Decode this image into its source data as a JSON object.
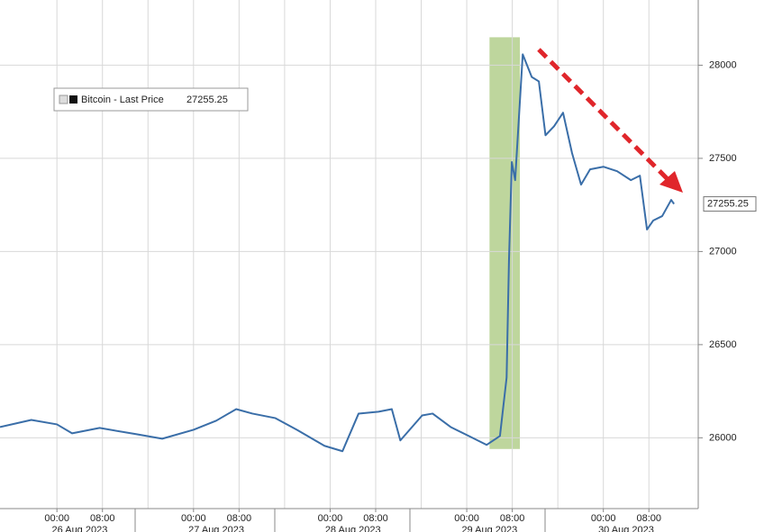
{
  "chart_data": {
    "type": "line",
    "x": [
      "2023-08-25T14:00",
      "2023-08-25T19:30",
      "2023-08-26T00:00",
      "2023-08-26T02:40",
      "2023-08-26T07:30",
      "2023-08-26T14:00",
      "2023-08-26T18:30",
      "2023-08-27T00:00",
      "2023-08-27T04:00",
      "2023-08-27T07:30",
      "2023-08-27T10:20",
      "2023-08-27T14:20",
      "2023-08-27T18:10",
      "2023-08-27T23:00",
      "2023-08-28T02:10",
      "2023-08-28T05:00",
      "2023-08-28T08:30",
      "2023-08-28T10:50",
      "2023-08-28T12:20",
      "2023-08-28T16:10",
      "2023-08-28T18:00",
      "2023-08-28T21:10",
      "2023-08-29T00:20",
      "2023-08-29T03:30",
      "2023-08-29T05:50",
      "2023-08-29T07:00",
      "2023-08-29T07:25",
      "2023-08-29T07:55",
      "2023-08-29T08:30",
      "2023-08-29T09:10",
      "2023-08-29T09:50",
      "2023-08-29T11:25",
      "2023-08-29T12:40",
      "2023-08-29T13:50",
      "2023-08-29T15:20",
      "2023-08-29T16:55",
      "2023-08-29T18:30",
      "2023-08-29T20:05",
      "2023-08-29T21:40",
      "2023-08-30T00:00",
      "2023-08-30T02:25",
      "2023-08-30T04:50",
      "2023-08-30T06:25",
      "2023-08-30T07:40",
      "2023-08-30T08:45",
      "2023-08-30T10:20",
      "2023-08-30T11:55",
      "2023-08-30T12:25"
    ],
    "series": [
      {
        "name": "Bitcoin - Last Price",
        "color": "#3a6ea8",
        "values": [
          26058,
          26096,
          26072,
          26024,
          26053,
          26019,
          25995,
          26043,
          26092,
          26154,
          26130,
          26106,
          26043,
          25957,
          25928,
          26130,
          26140,
          26154,
          25986,
          26120,
          26130,
          26058,
          26010,
          25962,
          26010,
          26323,
          26950,
          27480,
          27383,
          27720,
          28058,
          27937,
          27913,
          27624,
          27672,
          27745,
          27528,
          27359,
          27441,
          27455,
          27431,
          27383,
          27407,
          27118,
          27166,
          27190,
          27277,
          27255.25
        ]
      }
    ],
    "last_value": 27255.25,
    "xlim": [
      "2023-08-25T14:00",
      "2023-08-30T16:40"
    ],
    "xticks": [
      {
        "value": "2023-08-26T00:00",
        "label": "00:00"
      },
      {
        "value": "2023-08-26T08:00",
        "label": "08:00"
      },
      {
        "value": "2023-08-27T00:00",
        "label": "00:00"
      },
      {
        "value": "2023-08-27T08:00",
        "label": "08:00"
      },
      {
        "value": "2023-08-28T00:00",
        "label": "00:00"
      },
      {
        "value": "2023-08-28T08:00",
        "label": "08:00"
      },
      {
        "value": "2023-08-29T00:00",
        "label": "00:00"
      },
      {
        "value": "2023-08-29T08:00",
        "label": "08:00"
      },
      {
        "value": "2023-08-30T00:00",
        "label": "00:00"
      },
      {
        "value": "2023-08-30T08:00",
        "label": "08:00"
      }
    ],
    "minor_xticks": [
      "2023-08-26T16:00",
      "2023-08-27T16:00",
      "2023-08-28T16:00",
      "2023-08-29T16:00"
    ],
    "date_labels": [
      "26 Aug 2023",
      "27 Aug 2023",
      "28 Aug 2023",
      "29 Aug 2023",
      "30 Aug 2023"
    ],
    "ylim": [
      25620,
      28350
    ],
    "yticks": [
      26000,
      26500,
      27000,
      27500,
      28000
    ],
    "grid": true,
    "highlight": {
      "x": [
        "2023-08-29T04:00",
        "2023-08-29T09:20"
      ],
      "y": [
        25940,
        28150
      ],
      "color": "#b3cf8c"
    }
  }
}
